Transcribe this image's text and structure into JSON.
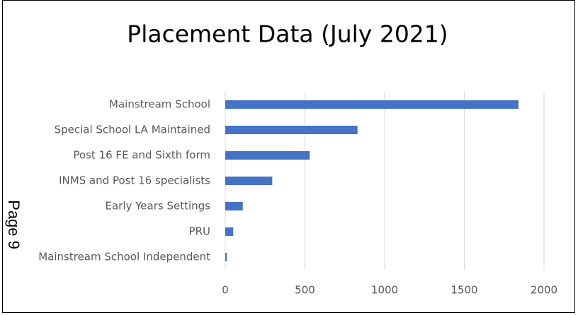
{
  "page_label": "Page 9",
  "chart_data": {
    "type": "bar",
    "orientation": "horizontal",
    "title": "Placement Data (July 2021)",
    "categories": [
      "Mainstream School",
      "Special School LA Maintained",
      "Post 16 FE and Sixth form",
      "INMS and Post 16 specialists",
      "Early Years Settings",
      "PRU",
      "Mainstream School Independent"
    ],
    "values": [
      1840,
      830,
      530,
      295,
      110,
      50,
      10
    ],
    "color": "#4472c4",
    "xlim": [
      0,
      2000
    ],
    "xticks": [
      0,
      500,
      1000,
      1500,
      2000
    ],
    "grid": true
  }
}
